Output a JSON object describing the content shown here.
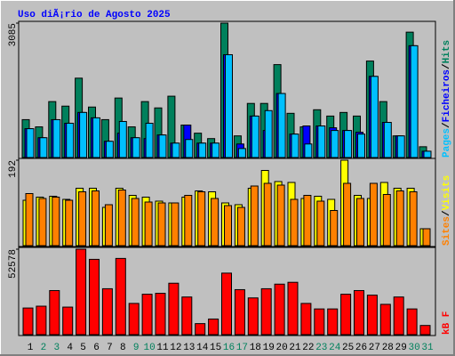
{
  "title": "Uso diÃ¡rio de Agosto 2025",
  "chart_data": [
    {
      "type": "bar",
      "ylim": [
        0,
        3085
      ],
      "yticks": [
        3085
      ],
      "separator": "/",
      "series": [
        {
          "name": "Pages",
          "color": "#00c0ff",
          "values": [
            662,
            455,
            869,
            787,
            1035,
            911,
            373,
            828,
            455,
            787,
            518,
            331,
            414,
            331,
            331,
            2360,
            207,
            952,
            1077,
            1470,
            538,
            311,
            725,
            621,
            621,
            538,
            1863,
            807,
            497,
            2567,
            145
          ]
        },
        {
          "name": "Ficheiros",
          "color": "#0000ff",
          "values": [
            662,
            455,
            869,
            787,
            1035,
            911,
            373,
            559,
            455,
            435,
            518,
            331,
            745,
            331,
            331,
            2360,
            311,
            952,
            621,
            1470,
            538,
            725,
            725,
            683,
            621,
            580,
            1863,
            807,
            497,
            2567,
            145
          ]
        },
        {
          "name": "Hits",
          "color": "#00805c",
          "values": [
            870,
            704,
            1284,
            1180,
            1822,
            1159,
            870,
            1366,
            704,
            1284,
            1139,
            1408,
            745,
            559,
            435,
            3085,
            497,
            1242,
            1242,
            2133,
            1015,
            704,
            1097,
            952,
            1035,
            952,
            2215,
            1284,
            497,
            2878,
            248
          ]
        }
      ]
    },
    {
      "type": "bar",
      "ylim": [
        0,
        192
      ],
      "yticks": [
        192
      ],
      "separator": "/",
      "series": [
        {
          "name": "Sites",
          "color": "#ff8000",
          "values": [
            117,
            106,
            109,
            102,
            121,
            123,
            92,
            125,
            106,
            98,
            96,
            96,
            113,
            121,
            106,
            90,
            86,
            134,
            140,
            136,
            104,
            113,
            100,
            79,
            140,
            106,
            140,
            115,
            123,
            121,
            38
          ]
        },
        {
          "name": "Visits",
          "color": "#ffff00",
          "values": [
            102,
            109,
            111,
            104,
            129,
            129,
            86,
            129,
            113,
            109,
            100,
            96,
            109,
            123,
            121,
            96,
            92,
            129,
            169,
            144,
            142,
            106,
            111,
            104,
            192,
            113,
            106,
            142,
            129,
            129,
            38
          ]
        }
      ]
    },
    {
      "type": "bar",
      "ylim": [
        0,
        52578
      ],
      "yticks": [
        52578
      ],
      "categories": [
        "1",
        "2",
        "3",
        "4",
        "5",
        "6",
        "7",
        "8",
        "9",
        "10",
        "11",
        "12",
        "13",
        "14",
        "15",
        "16",
        "17",
        "18",
        "19",
        "20",
        "21",
        "22",
        "23",
        "24",
        "25",
        "26",
        "27",
        "28",
        "29",
        "30",
        "31"
      ],
      "category_colors": [
        "#000000",
        "#00805c",
        "#00805c",
        "#000000",
        "#000000",
        "#000000",
        "#000000",
        "#000000",
        "#00805c",
        "#00805c",
        "#000000",
        "#000000",
        "#000000",
        "#000000",
        "#000000",
        "#00805c",
        "#00805c",
        "#000000",
        "#000000",
        "#000000",
        "#000000",
        "#000000",
        "#00805c",
        "#00805c",
        "#000000",
        "#000000",
        "#000000",
        "#000000",
        "#000000",
        "#00805c",
        "#00805c"
      ],
      "series": [
        {
          "name": "kB F",
          "color": "#ff0000",
          "values": [
            16385,
            17515,
            27120,
            16950,
            52578,
            46330,
            28250,
            46895,
            19210,
            24860,
            25425,
            31640,
            23165,
            6780,
            9605,
            37855,
            27685,
            22600,
            28250,
            31075,
            32205,
            19210,
            15820,
            15820,
            24860,
            27120,
            24295,
            18645,
            23165,
            15820,
            5650
          ]
        }
      ]
    }
  ]
}
